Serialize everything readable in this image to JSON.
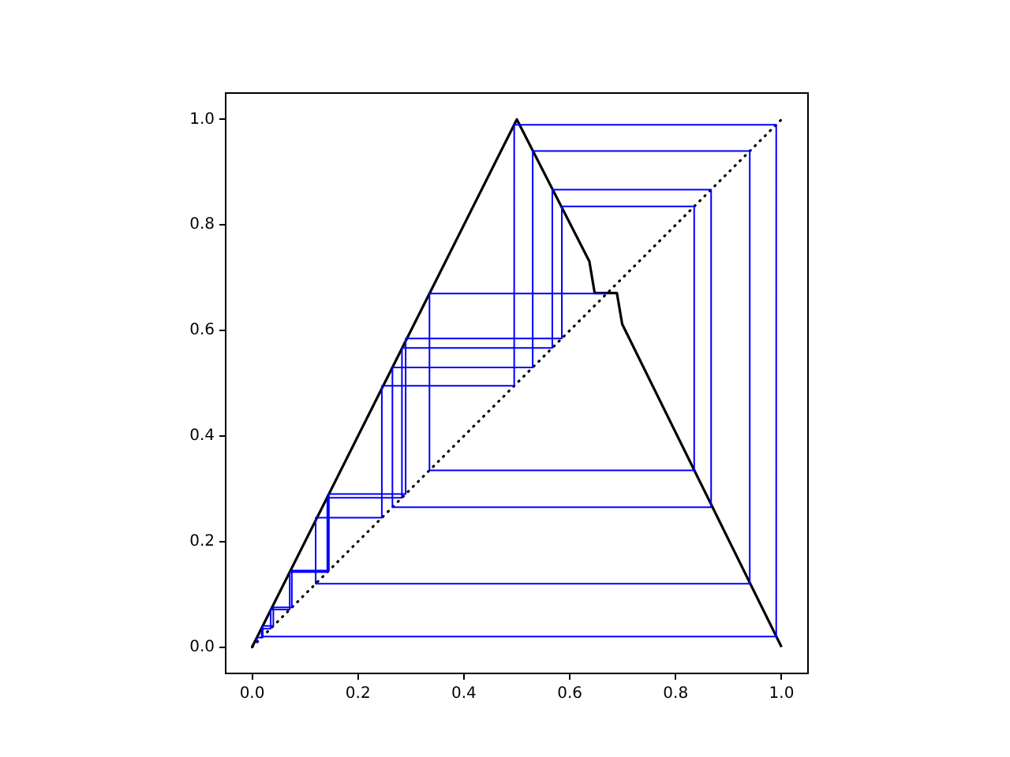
{
  "chart_data": {
    "type": "line",
    "xlim": [
      -0.05,
      1.05
    ],
    "ylim": [
      -0.05,
      1.05
    ],
    "xticks": [
      {
        "value": 0,
        "label": "0.0"
      },
      0.2,
      0.4,
      0.6,
      0.8,
      {
        "value": 1,
        "label": "1.0"
      }
    ],
    "yticks": [
      {
        "value": 0,
        "label": "0.0"
      },
      0.2,
      0.4,
      0.6,
      0.8,
      {
        "value": 1,
        "label": "1.0"
      }
    ],
    "grid": false,
    "legend": false,
    "marker": "none",
    "series": [
      {
        "color": "#000000",
        "line_style": "solid",
        "x": [
          0,
          0.5,
          0.637,
          0.647,
          0.689,
          0.699,
          1
        ],
        "values": [
          0,
          1,
          0.731,
          0.671,
          0.671,
          0.612,
          0
        ]
      },
      {
        "color": "#000000",
        "line_style": "dotted",
        "x": [
          0,
          1
        ],
        "values": [
          0,
          1
        ]
      },
      {
        "color": "#0000ff",
        "line_style": "solid",
        "x": [
          0.009,
          0.009,
          0.018,
          0.018,
          0.035,
          0.035,
          0.071,
          0.071,
          0.142,
          0.142,
          0.283,
          0.283,
          0.567,
          0.567,
          0.867,
          0.867,
          0.265,
          0.265,
          0.53,
          0.53,
          0.94,
          0.94,
          0.12,
          0.12,
          0.245,
          0.245,
          0.495,
          0.495,
          0.99,
          0.99,
          0.02,
          0.02,
          0.04,
          0.04,
          0.075,
          0.075,
          0.145,
          0.145,
          0.29,
          0.29,
          0.585,
          0.585,
          0.835,
          0.835,
          0.335,
          0.335,
          0.67
        ],
        "values": [
          0.009,
          0.018,
          0.018,
          0.035,
          0.035,
          0.071,
          0.071,
          0.142,
          0.142,
          0.283,
          0.283,
          0.567,
          0.567,
          0.867,
          0.867,
          0.265,
          0.265,
          0.53,
          0.53,
          0.94,
          0.94,
          0.12,
          0.12,
          0.245,
          0.245,
          0.495,
          0.495,
          0.99,
          0.99,
          0.02,
          0.02,
          0.04,
          0.04,
          0.075,
          0.075,
          0.145,
          0.145,
          0.29,
          0.29,
          0.585,
          0.585,
          0.835,
          0.835,
          0.335,
          0.335,
          0.67,
          0.67
        ]
      }
    ]
  }
}
